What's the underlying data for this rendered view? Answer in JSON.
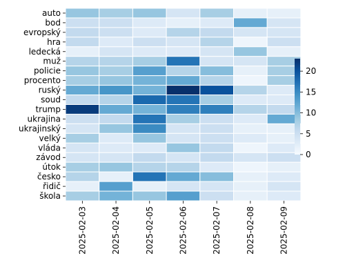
{
  "chart_data": {
    "type": "heatmap",
    "rows": [
      "auto",
      "bod",
      "evropský",
      "hra",
      "ledecká",
      "muž",
      "policie",
      "procento",
      "ruský",
      "soud",
      "trump",
      "ukrajina",
      "ukrajinský",
      "velký",
      "vláda",
      "závod",
      "útok",
      "česko",
      "řidič",
      "škola"
    ],
    "columns": [
      "2025-02-03",
      "2025-02-04",
      "2025-02-05",
      "2025-02-06",
      "2025-02-07",
      "2025-02-08",
      "2025-02-09"
    ],
    "values": [
      [
        9,
        8,
        9,
        4,
        8,
        2,
        2
      ],
      [
        5,
        5,
        3,
        2,
        3,
        12,
        4
      ],
      [
        6,
        5,
        3,
        7,
        6,
        4,
        4
      ],
      [
        6,
        3,
        5,
        4,
        7,
        1,
        5
      ],
      [
        2,
        4,
        3,
        3,
        4,
        9,
        2
      ],
      [
        7,
        7,
        8,
        17,
        4,
        4,
        8
      ],
      [
        9,
        8,
        13,
        7,
        10,
        2,
        8
      ],
      [
        8,
        9,
        11,
        12,
        7,
        1,
        8
      ],
      [
        12,
        14,
        11,
        23,
        20,
        7,
        3
      ],
      [
        6,
        7,
        18,
        17,
        8,
        3,
        3
      ],
      [
        22,
        12,
        11,
        16,
        16,
        7,
        6
      ],
      [
        5,
        6,
        17,
        8,
        5,
        3,
        12
      ],
      [
        4,
        9,
        15,
        4,
        5,
        2,
        2
      ],
      [
        8,
        3,
        9,
        4,
        5,
        3,
        2
      ],
      [
        4,
        3,
        3,
        9,
        6,
        1,
        3
      ],
      [
        4,
        4,
        6,
        4,
        6,
        4,
        5
      ],
      [
        8,
        9,
        7,
        7,
        3,
        1,
        2
      ],
      [
        7,
        2,
        17,
        12,
        10,
        2,
        3
      ],
      [
        2,
        13,
        2,
        4,
        4,
        2,
        4
      ],
      [
        8,
        11,
        9,
        13,
        5,
        2,
        3
      ]
    ],
    "colorbar": {
      "min": 0,
      "max": 23,
      "ticks": [
        0,
        5,
        10,
        15,
        20
      ]
    },
    "colormap": "Blues",
    "title": "",
    "xlabel": "",
    "ylabel": ""
  }
}
